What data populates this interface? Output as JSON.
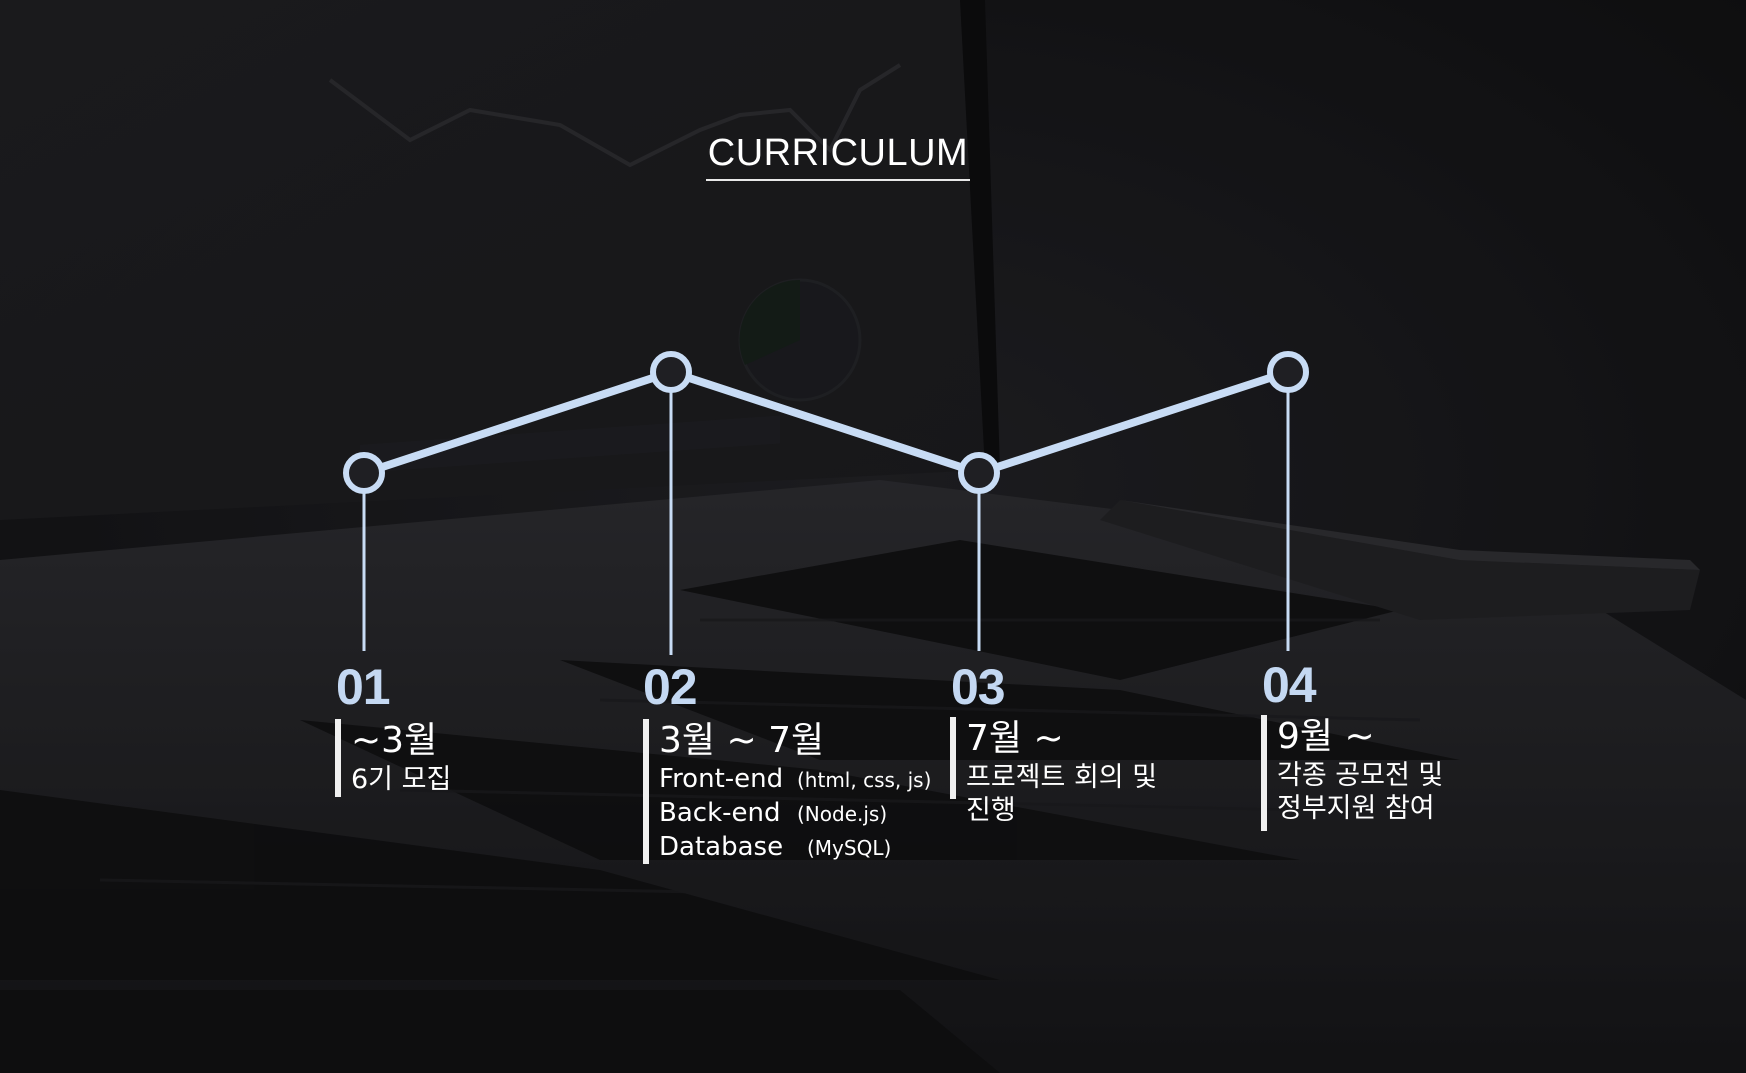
{
  "title": "CURRICULUM",
  "colors": {
    "accent": "#c4d8f2",
    "line": "#c8dcf5",
    "background": "#1f1f23",
    "text": "#ffffff"
  },
  "steps": [
    {
      "number": "01",
      "date": "~3월",
      "desc_lines": [
        "6기 모집"
      ]
    },
    {
      "number": "02",
      "date": "3월 ~ 7월",
      "tech": [
        {
          "name": "Front-end",
          "detail": "(html, css, js)"
        },
        {
          "name": "Back-end",
          "detail": "(Node.js)"
        },
        {
          "name": "Database",
          "detail": "(MySQL)"
        }
      ]
    },
    {
      "number": "03",
      "date": "7월 ~",
      "desc_lines": [
        "프로젝트 회의 및",
        "진행"
      ]
    },
    {
      "number": "04",
      "date": "9월 ~",
      "desc_lines": [
        "각종 공모전 및",
        "정부지원 참여"
      ]
    }
  ]
}
